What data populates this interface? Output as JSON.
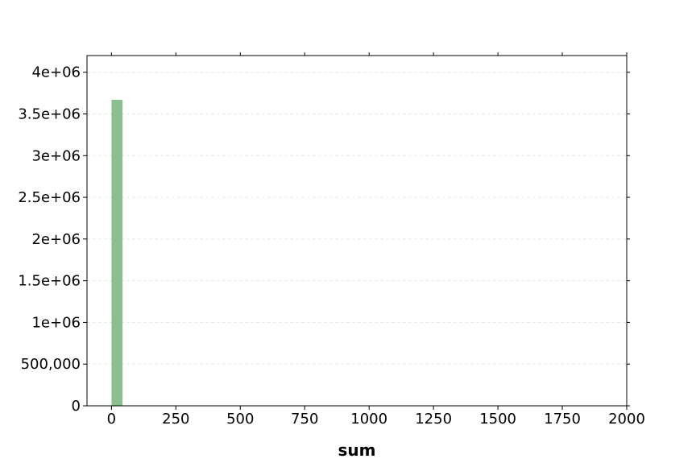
{
  "chart_data": {
    "type": "bar",
    "title": "",
    "xlabel": "sum",
    "ylabel": "",
    "xlim": [
      -95,
      2000
    ],
    "ylim": [
      0,
      4200000
    ],
    "x_ticks": [
      0,
      250,
      500,
      750,
      1000,
      1250,
      1500,
      1750,
      2000
    ],
    "x_tick_labels": [
      "0",
      "250",
      "500",
      "750",
      "1000",
      "1250",
      "1500",
      "1750",
      "2000"
    ],
    "y_ticks": [
      0,
      500000,
      1000000,
      1500000,
      2000000,
      2500000,
      3000000,
      3500000,
      4000000
    ],
    "y_tick_labels": [
      "0",
      "500,000",
      "1e+06",
      "1.5e+06",
      "2e+06",
      "2.5e+06",
      "3e+06",
      "3.5e+06",
      "4e+06"
    ],
    "grid": "horizontal dashed",
    "bars": [
      {
        "x_start": 0,
        "x_end": 43,
        "value": 3670000
      }
    ],
    "colors": {
      "bar": "#8bbf8f",
      "grid": "#e6e6e6",
      "axis": "#000000"
    }
  }
}
